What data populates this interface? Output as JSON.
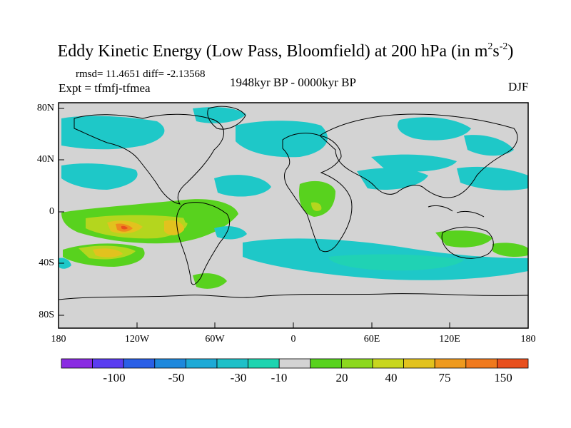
{
  "title": {
    "main": "Eddy Kinetic Energy (Low Pass, Bloomfield) at 200 hPa (in m",
    "sup1": "2",
    "mid": "s",
    "sup2": "-2",
    "end": ")"
  },
  "stats": "rmsd= 11.4651 diff= -2.13568",
  "expt": "Expt = tfmfj-tfmea",
  "period": "1948kyr BP - 0000kyr BP",
  "season": "DJF",
  "lat_labels": [
    "80N",
    "40N",
    "0",
    "40S",
    "80S"
  ],
  "lon_labels": [
    "180",
    "120W",
    "60W",
    "0",
    "60E",
    "120E",
    "180"
  ],
  "colorbar": {
    "labels": [
      "-100",
      "-50",
      "-30",
      "-10",
      "20",
      "40",
      "75",
      "150"
    ],
    "colors": [
      "#8a2be2",
      "#5a3cf0",
      "#2a5fe6",
      "#1e88dc",
      "#1eaad6",
      "#1ec0c8",
      "#1ed4b0",
      "#d3d3d3",
      "#58d21e",
      "#8cd81e",
      "#c8d61e",
      "#e2c21e",
      "#ee9a1e",
      "#f07a1e",
      "#e8501e"
    ]
  },
  "map_colors": {
    "land_bg": "#d3d3d3",
    "coast": "#000000",
    "cyan": "#1ec8c8",
    "teal": "#20d2b4",
    "green": "#58d21e",
    "yellowgreen": "#b4d61e",
    "yellow": "#e2c21e",
    "orange": "#ee8a1e",
    "red": "#e8501e"
  }
}
